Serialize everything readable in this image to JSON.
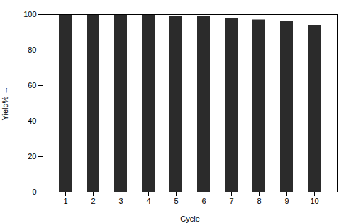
{
  "chart_data": {
    "type": "bar",
    "categories": [
      1,
      2,
      3,
      4,
      5,
      6,
      7,
      8,
      9,
      10
    ],
    "values": [
      100,
      100,
      100,
      100,
      99,
      99,
      98,
      97,
      96,
      94
    ],
    "color": "#2b2b2b",
    "xlabel": "Cycle",
    "ylabel": "Yield%",
    "ylim": [
      0,
      100
    ],
    "yticks": [
      0,
      20,
      40,
      60,
      80,
      100
    ],
    "grid": false
  }
}
